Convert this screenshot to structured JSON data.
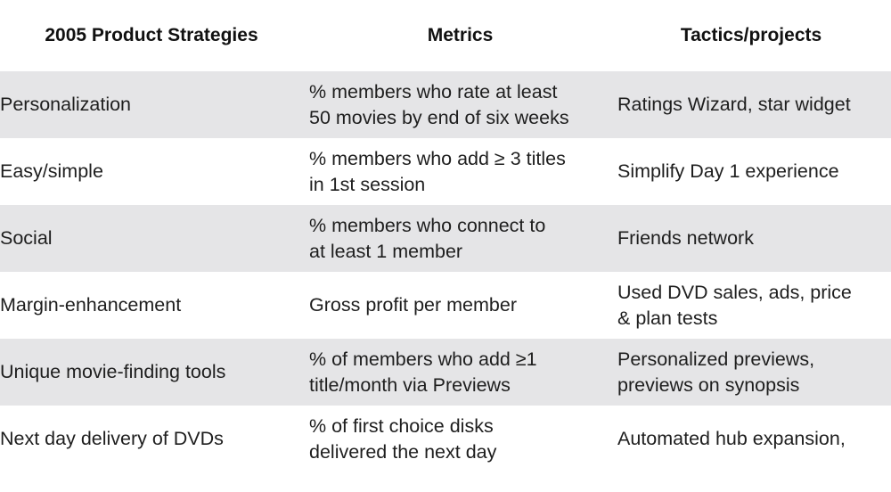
{
  "columns": [
    "2005 Product Strategies",
    "Metrics",
    "Tactics/projects"
  ],
  "rows": [
    {
      "strategy": "Personalization",
      "metric": "% members who rate at least\n50 movies by end of six weeks",
      "tactic": "Ratings Wizard, star widget"
    },
    {
      "strategy": "Easy/simple",
      "metric": "% members who add ≥ 3 titles\nin 1st session",
      "tactic": "Simplify Day 1 experience"
    },
    {
      "strategy": "Social",
      "metric": "% members who connect to\nat least 1 member",
      "tactic": "Friends network"
    },
    {
      "strategy": "Margin-enhancement",
      "metric": "Gross profit per member",
      "tactic": "Used DVD sales, ads, price\n& plan tests"
    },
    {
      "strategy": "Unique movie-finding tools",
      "metric": "% of members who add ≥1\ntitle/month via Previews",
      "tactic": "Personalized previews,\npreviews on synopsis"
    },
    {
      "strategy": "Next day delivery of DVDs",
      "metric": "% of first choice disks\ndelivered the next day",
      "tactic": "Automated hub expansion,"
    }
  ],
  "colors": {
    "row_shade": "#e5e5e7",
    "background": "#ffffff",
    "text": "#1e1e1e"
  }
}
